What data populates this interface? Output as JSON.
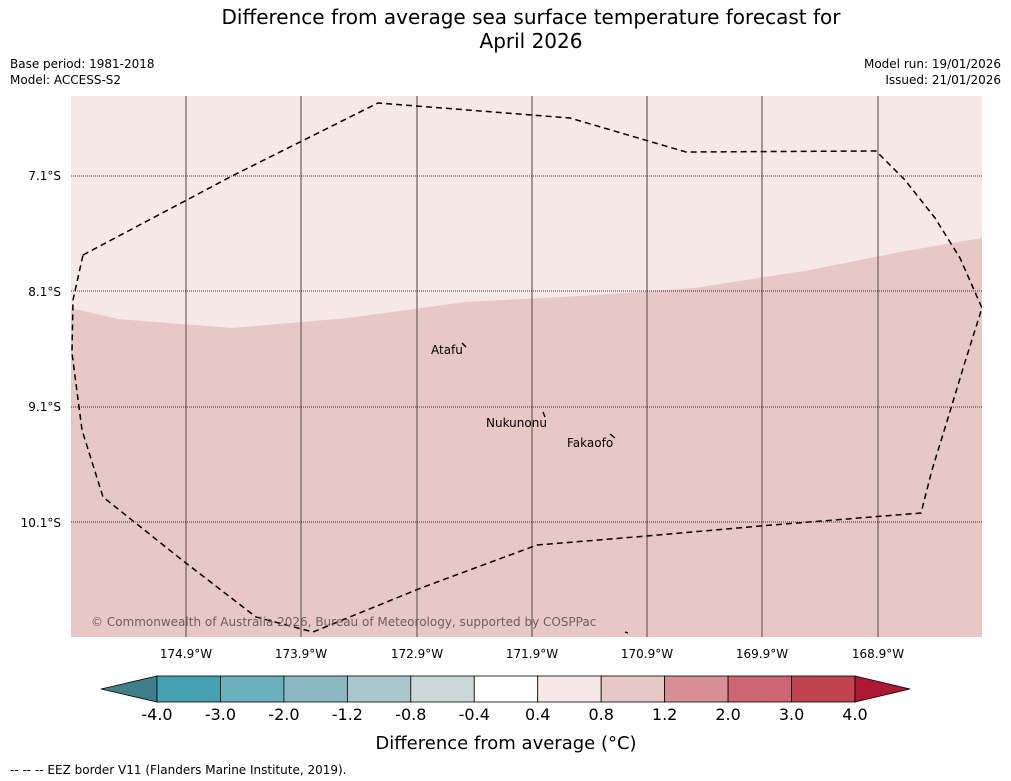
{
  "title_line1": "Difference from average sea surface temperature forecast for",
  "title_line2": "April 2026",
  "base_period": "Base period: 1981-2018",
  "model": "Model: ACCESS-S2",
  "model_run": "Model run: 19/01/2026",
  "issued": "Issued: 21/01/2026",
  "map": {
    "lat_labels": [
      "7.1°S",
      "8.1°S",
      "9.1°S",
      "10.1°S"
    ],
    "lon_labels": [
      "174.9°W",
      "173.9°W",
      "172.9°W",
      "171.9°W",
      "170.9°W",
      "169.9°W",
      "168.9°W"
    ],
    "places": [
      {
        "name": "Atafu"
      },
      {
        "name": "Nukunonu"
      },
      {
        "name": "Fakaofo"
      }
    ],
    "credit": "© Commonwealth of Australia 2026, Bureau of Meteorology, supported by COSPPac",
    "fill_colors": {
      "upper": "#f5e8e7",
      "lower": "#e7c8c4"
    }
  },
  "colorbar": {
    "labels": [
      "-4.0",
      "-3.0",
      "-2.0",
      "-1.2",
      "-0.8",
      "-0.4",
      "0.4",
      "0.8",
      "1.2",
      "2.0",
      "3.0",
      "4.0"
    ],
    "colors": [
      "#3e7f8a",
      "#45a1b2",
      "#6cafbd",
      "#8db8c3",
      "#aac7ce",
      "#cbd8da",
      "#ffffff",
      "#f5e8e7",
      "#e7c8c4",
      "#d68f95",
      "#cd6672",
      "#c04352",
      "#ac1934"
    ],
    "title": "Difference from average (°C)"
  },
  "footer": "--  --  -- EEZ border V11 (Flanders Marine Institute, 2019)."
}
